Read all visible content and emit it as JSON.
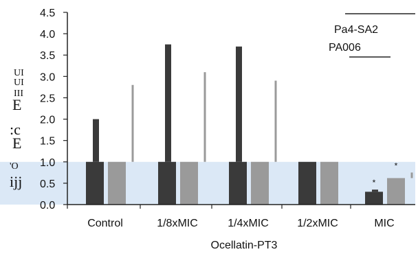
{
  "chart_data": {
    "type": "bar",
    "xlabel": "Ocellatin-PT3",
    "ylabel_fragments": [
      "UI",
      "UI",
      "III",
      "E",
      ":c",
      "E",
      "'O",
      "ijj"
    ],
    "ylim": [
      0,
      4.5
    ],
    "yticks": [
      "0.0",
      "0.5",
      "1.0",
      "1.5",
      "2.0",
      "2.5",
      "3.0",
      "3.5",
      "4.0",
      "4.5"
    ],
    "categories": [
      "Control",
      "1/8xMIC",
      "1/4xMIC",
      "1/2xMIC",
      "MIC"
    ],
    "series": [
      {
        "name": "Pa4-SA2",
        "color": "#3a3a3a",
        "values": [
          1.0,
          1.0,
          1.0,
          1.0,
          0.3
        ],
        "upper": [
          2.0,
          3.75,
          3.7,
          1.0,
          0.35
        ],
        "significance": [
          "",
          "",
          "",
          "",
          "*"
        ]
      },
      {
        "name": "PA006",
        "color": "#9a9a9a",
        "values": [
          1.0,
          1.0,
          1.0,
          1.0,
          0.62
        ],
        "upper": [
          2.8,
          3.1,
          2.9,
          1.0,
          0.75
        ],
        "significance": [
          "",
          "",
          "",
          "",
          "*"
        ]
      }
    ],
    "legend_position": "top-right",
    "grid": false,
    "reference_band": [
      0,
      1.0
    ],
    "band_color": "#dbe8f6"
  }
}
